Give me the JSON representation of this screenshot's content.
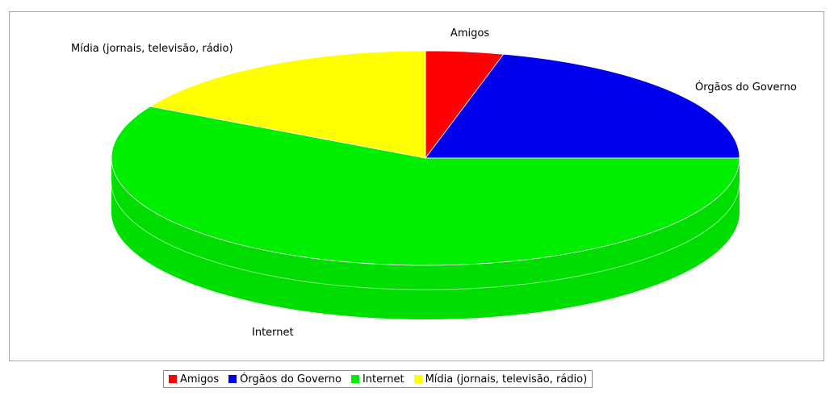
{
  "chart_data": {
    "type": "pie",
    "title": "",
    "categories": [
      "Amigos",
      "Órgãos do Governo",
      "Internet",
      "Mídia (jornais, televisão, rádio)"
    ],
    "values": [
      4,
      21,
      58,
      17
    ],
    "colors": [
      "#ff0000",
      "#0000ee",
      "#00ee00",
      "#ffff00"
    ],
    "legend_position": "bottom",
    "style": "3d"
  }
}
